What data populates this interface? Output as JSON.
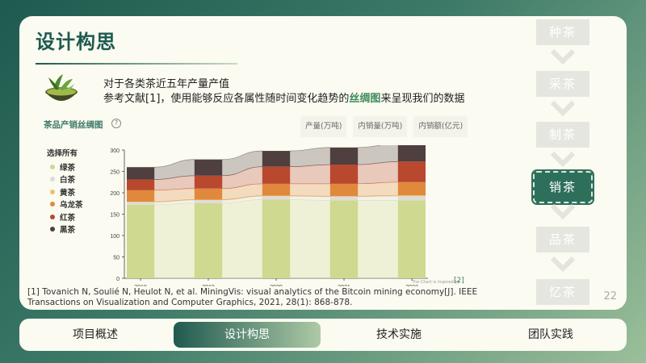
{
  "slide": {
    "title": "设计构思",
    "intro_line1": "对于各类茶近五年产量产值",
    "intro_line2_pre": "参考文献[1]，使用能够反应各属性随时间变化趋势的",
    "intro_line2_highlight": "丝绸图",
    "intro_line2_post": "来呈现我们的数据",
    "bowl_icon": "tea-bowl-icon",
    "page_number": "22",
    "reference": "[1] Tovanich N, Soulié N, Heulot N, et al. MiningVis: visual analytics of the Bitcoin mining economy[J]. IEEE Transactions on Visualization and Computer Graphics, 2021, 28(1): 868-878.",
    "credit": "The Chart is inspired by",
    "credit_ref": "[2]"
  },
  "chart_panel": {
    "title": "茶品产销丝绸图",
    "help_icon": "?",
    "tabs": [
      "产量(万吨)",
      "内销量(万吨)",
      "内销额(亿元)"
    ],
    "active_tab": 0,
    "legend_title": "选择所有"
  },
  "chart_data": {
    "type": "bar",
    "stacked": true,
    "categories": [
      "2018",
      "2019",
      "2020",
      "2021",
      "2022"
    ],
    "ylim": [
      0,
      300
    ],
    "yticks": [
      0,
      50,
      100,
      150,
      200,
      250,
      300
    ],
    "series": [
      {
        "name": "绿茶",
        "color": "#cfd98f",
        "values": [
          172,
          176,
          184,
          182,
          182
        ]
      },
      {
        "name": "白茶",
        "color": "#dcdcd8",
        "values": [
          6,
          7,
          8,
          9,
          10
        ]
      },
      {
        "name": "黄茶",
        "color": "#e8c46a",
        "values": [
          1,
          1,
          1,
          1,
          2
        ]
      },
      {
        "name": "乌龙茶",
        "color": "#e0893d",
        "values": [
          27,
          26,
          28,
          29,
          31
        ]
      },
      {
        "name": "红茶",
        "color": "#b8482e",
        "values": [
          25,
          30,
          40,
          45,
          48
        ]
      },
      {
        "name": "黑茶",
        "color": "#4f3f3e",
        "values": [
          29,
          38,
          37,
          40,
          42
        ]
      }
    ]
  },
  "steps": {
    "items": [
      "种茶",
      "采茶",
      "制茶",
      "销茶",
      "品茶",
      "忆茶"
    ],
    "active": 3
  },
  "nav": {
    "items": [
      "项目概述",
      "设计构思",
      "技术实施",
      "团队实践"
    ],
    "active": 1
  }
}
